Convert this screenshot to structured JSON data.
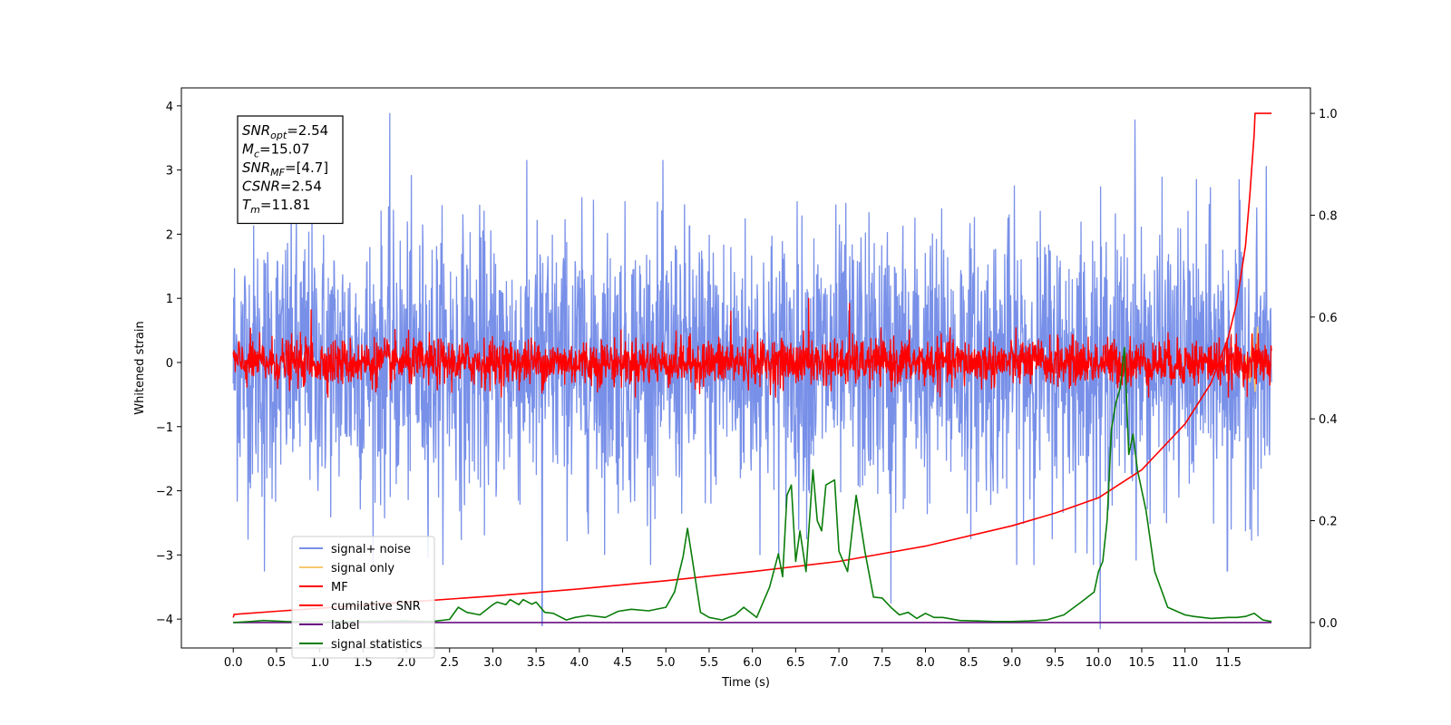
{
  "chart_data": {
    "type": "line",
    "xlabel": "Time (s)",
    "ylabel": "Whitened strain",
    "xlim": [
      -0.6,
      12.45
    ],
    "ylim": [
      -4.45,
      4.28
    ],
    "y2lim": [
      -0.05,
      1.05
    ],
    "x_ticks": [
      "0.0",
      "0.5",
      "1.0",
      "1.5",
      "2.0",
      "2.5",
      "3.0",
      "3.5",
      "4.0",
      "4.5",
      "5.0",
      "5.5",
      "6.0",
      "6.5",
      "7.0",
      "7.5",
      "8.0",
      "8.5",
      "9.0",
      "9.5",
      "10.0",
      "10.5",
      "11.0",
      "11.5"
    ],
    "y_ticks": [
      "4",
      "3",
      "2",
      "1",
      "0",
      "−1",
      "−2",
      "−3",
      "−4"
    ],
    "y2_ticks": [
      "1.0",
      "0.8",
      "0.6",
      "0.4",
      "0.2",
      "0.0"
    ],
    "info_box": [
      {
        "sym": "SNR",
        "sub": "opt",
        "val": "=2.54"
      },
      {
        "sym": "M",
        "sub": "c",
        "val": "=15.07"
      },
      {
        "sym": "SNR",
        "sub": "MF",
        "val": "=[4.7]"
      },
      {
        "sym": "CSNR",
        "sub": "",
        "val": "=2.54"
      },
      {
        "sym": "T",
        "sub": "m",
        "val": "=11.81"
      }
    ],
    "legend": {
      "position": "lower-left",
      "entries": [
        {
          "label": "signal+ noise",
          "color": "#7890e8"
        },
        {
          "label": "signal only",
          "color": "#f6c871"
        },
        {
          "label": "MF",
          "color": "#ff0000"
        },
        {
          "label": "cumilative SNR",
          "color": "#ff0000"
        },
        {
          "label": "label",
          "color": "#6a0d83"
        },
        {
          "label": "signal statistics",
          "color": "#0a7d0a"
        }
      ]
    },
    "series": [
      {
        "name": "signal+ noise",
        "axis": "left",
        "kind": "noise",
        "x_range": [
          0.0,
          12.0
        ],
        "color": "#7890e8",
        "amplitude": 1.05,
        "spikes": [
          [
            1.81,
            3.88
          ],
          [
            0.36,
            -3.25
          ],
          [
            3.57,
            -4.1
          ],
          [
            10.02,
            -4.15
          ],
          [
            10.42,
            3.78
          ],
          [
            11.49,
            -3.25
          ],
          [
            7.6,
            -3.75
          ]
        ]
      },
      {
        "name": "MF",
        "axis": "left",
        "kind": "noise",
        "x_range": [
          0.0,
          12.0
        ],
        "color": "#ff0000",
        "amplitude": 0.18,
        "spikes": [
          [
            0.9,
            0.82
          ],
          [
            6.65,
            1.0
          ],
          [
            7.12,
            0.92
          ],
          [
            5.75,
            0.8
          ]
        ]
      },
      {
        "name": "signal only",
        "axis": "left",
        "kind": "line",
        "color": "#f6c871",
        "x": [
          11.7,
          11.75,
          11.78,
          11.81,
          11.84,
          11.87
        ],
        "y": [
          0.1,
          -0.3,
          0.45,
          -0.45,
          0.55,
          -0.2
        ]
      },
      {
        "name": "cumilative SNR",
        "axis": "right",
        "kind": "line",
        "color": "#ff0000",
        "x": [
          0.0,
          0.01,
          0.5,
          1.0,
          2.0,
          3.0,
          4.0,
          5.0,
          6.0,
          7.0,
          8.0,
          9.0,
          9.5,
          10.0,
          10.5,
          11.0,
          11.3,
          11.5,
          11.6,
          11.7,
          11.75,
          11.8,
          11.81,
          12.0
        ],
        "y": [
          0.01,
          0.016,
          0.022,
          0.028,
          0.04,
          0.052,
          0.066,
          0.082,
          0.1,
          0.12,
          0.15,
          0.19,
          0.215,
          0.245,
          0.3,
          0.39,
          0.47,
          0.56,
          0.63,
          0.74,
          0.84,
          0.96,
          1.0,
          1.0
        ]
      },
      {
        "name": "label",
        "axis": "right",
        "kind": "line",
        "color": "#6a0d83",
        "x": [
          0.0,
          12.0
        ],
        "y": [
          0.0,
          0.0
        ]
      },
      {
        "name": "signal statistics",
        "axis": "right",
        "kind": "line",
        "color": "#0a7d0a",
        "x": [
          0.0,
          0.2,
          0.35,
          0.6,
          1.0,
          1.5,
          2.0,
          2.3,
          2.5,
          2.6,
          2.7,
          2.85,
          3.0,
          3.05,
          3.15,
          3.2,
          3.3,
          3.35,
          3.45,
          3.5,
          3.6,
          3.7,
          3.85,
          3.95,
          4.1,
          4.3,
          4.45,
          4.6,
          4.8,
          5.0,
          5.1,
          5.2,
          5.25,
          5.3,
          5.4,
          5.5,
          5.65,
          5.8,
          5.9,
          6.05,
          6.2,
          6.3,
          6.35,
          6.4,
          6.45,
          6.5,
          6.55,
          6.62,
          6.7,
          6.75,
          6.8,
          6.85,
          6.95,
          7.0,
          7.1,
          7.2,
          7.3,
          7.4,
          7.5,
          7.6,
          7.7,
          7.8,
          7.9,
          8.0,
          8.1,
          8.2,
          8.4,
          8.6,
          8.8,
          9.0,
          9.2,
          9.4,
          9.6,
          9.8,
          9.95,
          10.0,
          10.05,
          10.1,
          10.15,
          10.2,
          10.25,
          10.3,
          10.35,
          10.4,
          10.45,
          10.55,
          10.65,
          10.8,
          11.0,
          11.1,
          11.3,
          11.5,
          11.6,
          11.7,
          11.8,
          11.9,
          12.0
        ],
        "y": [
          0.0,
          0.002,
          0.004,
          0.002,
          0.001,
          0.002,
          0.003,
          0.002,
          0.006,
          0.03,
          0.02,
          0.015,
          0.035,
          0.04,
          0.035,
          0.045,
          0.035,
          0.045,
          0.036,
          0.04,
          0.02,
          0.018,
          0.005,
          0.01,
          0.014,
          0.01,
          0.022,
          0.026,
          0.023,
          0.03,
          0.06,
          0.13,
          0.185,
          0.13,
          0.02,
          0.01,
          0.005,
          0.015,
          0.03,
          0.01,
          0.07,
          0.135,
          0.09,
          0.25,
          0.27,
          0.12,
          0.18,
          0.1,
          0.3,
          0.2,
          0.18,
          0.27,
          0.28,
          0.14,
          0.1,
          0.25,
          0.14,
          0.05,
          0.048,
          0.03,
          0.015,
          0.02,
          0.008,
          0.018,
          0.01,
          0.01,
          0.004,
          0.003,
          0.002,
          0.002,
          0.003,
          0.005,
          0.015,
          0.04,
          0.06,
          0.1,
          0.12,
          0.2,
          0.38,
          0.43,
          0.46,
          0.54,
          0.33,
          0.37,
          0.3,
          0.22,
          0.1,
          0.03,
          0.015,
          0.012,
          0.008,
          0.01,
          0.01,
          0.012,
          0.018,
          0.005,
          0.002
        ]
      }
    ]
  }
}
